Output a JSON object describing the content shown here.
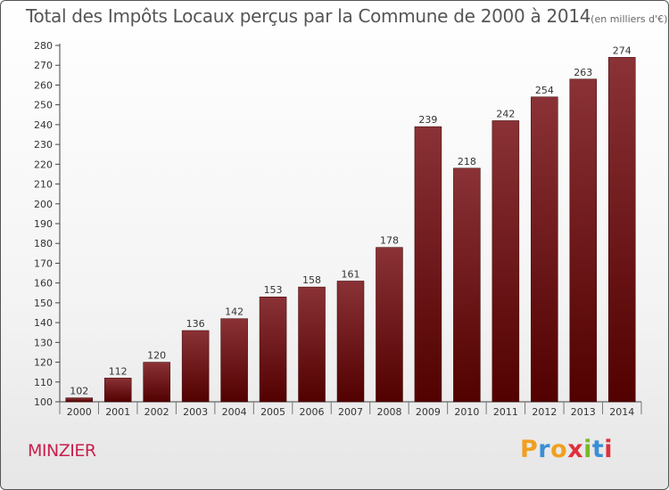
{
  "header": {
    "title": "Total des Impôts Locaux perçus par la Commune de 2000 à 2014",
    "subtitle": "(en milliers d'€)"
  },
  "footer": {
    "commune": "MINZIER",
    "logo": "Proxiti"
  },
  "colors": {
    "bar_top": "#8a3236",
    "bar_bottom": "#520000",
    "commune_text": "#c8204e",
    "logo_letters": [
      "#f0a020",
      "#3a8fd6",
      "#f0a020",
      "#e0303c",
      "#7ab828",
      "#3a8fd6",
      "#e0303c"
    ]
  },
  "chart_data": {
    "type": "bar",
    "title": "Total des Impôts Locaux perçus par la Commune de 2000 à 2014",
    "unit": "(en milliers d'€)",
    "categories": [
      "2000",
      "2001",
      "2002",
      "2003",
      "2004",
      "2005",
      "2006",
      "2007",
      "2008",
      "2009",
      "2010",
      "2011",
      "2012",
      "2013",
      "2014"
    ],
    "values": [
      102,
      112,
      120,
      136,
      142,
      153,
      158,
      161,
      178,
      239,
      218,
      242,
      254,
      263,
      274
    ],
    "ylim": [
      100,
      280
    ],
    "yticks": [
      100,
      110,
      120,
      130,
      140,
      150,
      160,
      170,
      180,
      190,
      200,
      210,
      220,
      230,
      240,
      250,
      260,
      270,
      280
    ],
    "xlabel": "",
    "ylabel": "",
    "grid": false,
    "data_labels": true
  }
}
